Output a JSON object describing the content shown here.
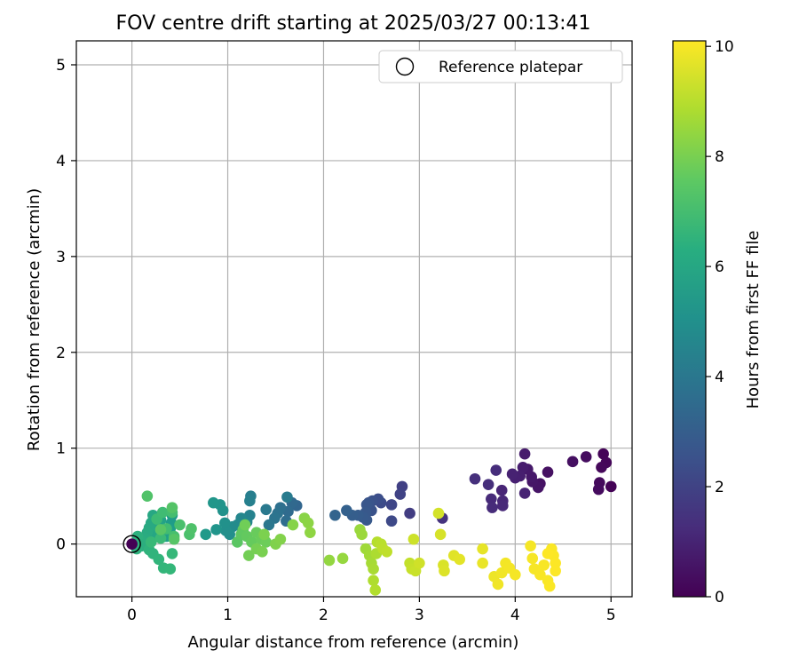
{
  "chart_data": {
    "type": "scatter",
    "title": "FOV centre drift starting at 2025/03/27 00:13:41",
    "xlabel": "Angular distance from reference (arcmin)",
    "ylabel": "Rotation from reference (arcmin)",
    "colorbar_label": "Hours from first FF file",
    "xlim": [
      -0.58,
      5.22
    ],
    "ylim": [
      -0.55,
      5.25
    ],
    "clim": [
      0,
      10.1
    ],
    "colormap": "viridis",
    "grid": true,
    "legend": {
      "position": "upper-right",
      "entries": [
        "Reference platepar"
      ]
    },
    "x_ticks": [
      "0",
      "1",
      "2",
      "3",
      "4",
      "5"
    ],
    "y_ticks": [
      "0",
      "1",
      "2",
      "3",
      "4",
      "5"
    ],
    "colorbar_ticks": [
      "0",
      "2",
      "4",
      "6",
      "8",
      "10"
    ],
    "reference_point": {
      "x": 0,
      "y": 0
    },
    "points": [
      [
        5.0,
        0.6,
        0.05
      ],
      [
        4.92,
        0.94,
        0.1
      ],
      [
        4.95,
        0.85,
        0.15
      ],
      [
        4.9,
        0.8,
        0.2
      ],
      [
        4.88,
        0.64,
        0.25
      ],
      [
        4.87,
        0.57,
        0.3
      ],
      [
        4.74,
        0.91,
        0.35
      ],
      [
        4.6,
        0.86,
        0.4
      ],
      [
        4.34,
        0.75,
        0.45
      ],
      [
        4.26,
        0.63,
        0.5
      ],
      [
        4.24,
        0.59,
        0.55
      ],
      [
        4.18,
        0.65,
        0.6
      ],
      [
        4.17,
        0.7,
        0.65
      ],
      [
        4.13,
        0.78,
        0.7
      ],
      [
        4.1,
        0.94,
        0.75
      ],
      [
        4.08,
        0.8,
        0.8
      ],
      [
        4.05,
        0.71,
        0.85
      ],
      [
        4.0,
        0.69,
        0.9
      ],
      [
        3.97,
        0.73,
        0.95
      ],
      [
        4.1,
        0.53,
        1.0
      ],
      [
        3.86,
        0.56,
        1.05
      ],
      [
        3.87,
        0.45,
        1.1
      ],
      [
        3.87,
        0.4,
        1.15
      ],
      [
        3.75,
        0.47,
        1.2
      ],
      [
        3.76,
        0.38,
        1.25
      ],
      [
        3.8,
        0.77,
        1.3
      ],
      [
        3.72,
        0.62,
        1.35
      ],
      [
        3.58,
        0.68,
        1.4
      ],
      [
        3.24,
        0.27,
        1.5
      ],
      [
        2.9,
        0.32,
        1.8
      ],
      [
        2.82,
        0.6,
        1.9
      ],
      [
        2.8,
        0.52,
        2.0
      ],
      [
        2.71,
        0.41,
        2.1
      ],
      [
        2.71,
        0.24,
        2.2
      ],
      [
        2.6,
        0.43,
        2.3
      ],
      [
        2.57,
        0.47,
        2.4
      ],
      [
        2.51,
        0.45,
        2.5
      ],
      [
        2.5,
        0.35,
        2.55
      ],
      [
        2.47,
        0.43,
        2.6
      ],
      [
        2.45,
        0.41,
        2.7
      ],
      [
        2.44,
        0.33,
        2.75
      ],
      [
        2.45,
        0.25,
        2.8
      ],
      [
        2.41,
        0.28,
        2.85
      ],
      [
        2.36,
        0.3,
        2.9
      ],
      [
        2.3,
        0.3,
        3.0
      ],
      [
        2.24,
        0.35,
        3.1
      ],
      [
        2.12,
        0.3,
        3.2
      ],
      [
        1.72,
        0.4,
        3.3
      ],
      [
        1.67,
        0.43,
        3.4
      ],
      [
        1.63,
        0.34,
        3.5
      ],
      [
        1.61,
        0.24,
        3.6
      ],
      [
        1.55,
        0.38,
        3.7
      ],
      [
        1.52,
        0.32,
        3.8
      ],
      [
        1.49,
        0.27,
        3.9
      ],
      [
        1.43,
        0.2,
        4.0
      ],
      [
        1.4,
        0.36,
        4.1
      ],
      [
        1.62,
        0.49,
        4.2
      ],
      [
        1.24,
        0.5,
        4.3
      ],
      [
        1.23,
        0.45,
        4.4
      ],
      [
        1.23,
        0.3,
        4.5
      ],
      [
        1.2,
        0.23,
        4.6
      ],
      [
        1.14,
        0.27,
        4.7
      ],
      [
        1.1,
        0.2,
        4.8
      ],
      [
        1.05,
        0.18,
        4.9
      ],
      [
        1.02,
        0.1,
        5.0
      ],
      [
        0.98,
        0.14,
        5.05
      ],
      [
        0.97,
        0.22,
        5.1
      ],
      [
        0.95,
        0.35,
        5.15
      ],
      [
        0.92,
        0.41,
        5.2
      ],
      [
        0.88,
        0.15,
        5.25
      ],
      [
        0.85,
        0.43,
        5.3
      ],
      [
        0.77,
        0.1,
        5.4
      ],
      [
        0.42,
        0.3,
        5.5
      ],
      [
        0.41,
        0.22,
        5.55
      ],
      [
        0.4,
        0.16,
        5.6
      ],
      [
        0.38,
        0.12,
        5.65
      ],
      [
        0.36,
        0.08,
        5.7
      ],
      [
        0.34,
        0.14,
        5.75
      ],
      [
        0.3,
        0.25,
        5.8
      ],
      [
        0.28,
        0.2,
        5.85
      ],
      [
        0.26,
        0.14,
        5.9
      ],
      [
        0.24,
        0.1,
        5.95
      ],
      [
        0.22,
        0.3,
        6.0
      ],
      [
        0.2,
        0.22,
        6.05
      ],
      [
        0.18,
        0.17,
        6.1
      ],
      [
        0.16,
        0.12,
        6.15
      ],
      [
        0.14,
        0.06,
        6.2
      ],
      [
        0.12,
        0.02,
        6.25
      ],
      [
        0.1,
        -0.02,
        6.3
      ],
      [
        0.08,
        0.04,
        6.35
      ],
      [
        0.06,
        0.08,
        6.4
      ],
      [
        0.05,
        -0.05,
        6.45
      ],
      [
        0.18,
        -0.06,
        6.5
      ],
      [
        0.22,
        -0.1,
        6.55
      ],
      [
        0.28,
        -0.16,
        6.6
      ],
      [
        0.33,
        -0.25,
        6.65
      ],
      [
        0.4,
        -0.26,
        6.7
      ],
      [
        0.42,
        -0.1,
        6.75
      ],
      [
        0.2,
        0.02,
        6.8
      ],
      [
        0.3,
        0.06,
        6.85
      ],
      [
        0.26,
        0.26,
        6.9
      ],
      [
        0.32,
        0.33,
        6.95
      ],
      [
        0.36,
        0.16,
        7.0
      ],
      [
        0.42,
        0.33,
        7.05
      ],
      [
        0.44,
        0.08,
        7.1
      ],
      [
        0.5,
        0.2,
        7.15
      ],
      [
        0.6,
        0.1,
        7.2
      ],
      [
        0.62,
        0.16,
        7.25
      ],
      [
        0.16,
        0.5,
        7.3
      ],
      [
        0.42,
        0.38,
        7.35
      ],
      [
        0.44,
        0.05,
        7.4
      ],
      [
        0.3,
        0.15,
        7.45
      ],
      [
        1.1,
        0.02,
        7.5
      ],
      [
        1.14,
        0.1,
        7.55
      ],
      [
        1.16,
        0.15,
        7.6
      ],
      [
        1.2,
        0.08,
        7.65
      ],
      [
        1.25,
        0.02,
        7.7
      ],
      [
        1.3,
        0.12,
        7.75
      ],
      [
        1.35,
        0.05,
        7.8
      ],
      [
        1.4,
        0.02,
        7.85
      ],
      [
        1.18,
        0.2,
        7.9
      ],
      [
        1.22,
        -0.12,
        7.95
      ],
      [
        1.3,
        -0.05,
        8.0
      ],
      [
        1.36,
        -0.08,
        8.05
      ],
      [
        1.38,
        0.1,
        8.1
      ],
      [
        1.5,
        0.0,
        8.15
      ],
      [
        1.55,
        0.05,
        8.2
      ],
      [
        1.68,
        0.2,
        8.25
      ],
      [
        1.8,
        0.27,
        8.3
      ],
      [
        1.84,
        0.22,
        8.35
      ],
      [
        1.86,
        0.12,
        8.4
      ],
      [
        2.06,
        -0.17,
        8.45
      ],
      [
        2.2,
        -0.15,
        8.5
      ],
      [
        2.38,
        0.15,
        8.55
      ],
      [
        2.4,
        0.1,
        8.6
      ],
      [
        2.44,
        -0.05,
        8.65
      ],
      [
        2.48,
        -0.12,
        8.7
      ],
      [
        2.5,
        -0.2,
        8.75
      ],
      [
        2.52,
        -0.26,
        8.8
      ],
      [
        2.55,
        -0.1,
        8.85
      ],
      [
        2.52,
        -0.38,
        8.9
      ],
      [
        2.54,
        -0.48,
        8.95
      ],
      [
        2.56,
        0.02,
        9.0
      ],
      [
        2.6,
        0.0,
        9.05
      ],
      [
        2.62,
        -0.05,
        9.1
      ],
      [
        2.66,
        -0.08,
        9.15
      ],
      [
        2.9,
        -0.2,
        9.2
      ],
      [
        2.92,
        -0.26,
        9.25
      ],
      [
        2.96,
        -0.28,
        9.3
      ],
      [
        2.94,
        0.05,
        9.35
      ],
      [
        3.0,
        -0.2,
        9.4
      ],
      [
        3.2,
        0.32,
        9.45
      ],
      [
        3.22,
        0.1,
        9.5
      ],
      [
        3.25,
        -0.22,
        9.55
      ],
      [
        3.26,
        -0.28,
        9.6
      ],
      [
        3.36,
        -0.12,
        9.65
      ],
      [
        3.42,
        -0.16,
        9.7
      ],
      [
        3.66,
        -0.05,
        9.75
      ],
      [
        3.66,
        -0.2,
        9.8
      ],
      [
        3.78,
        -0.34,
        9.85
      ],
      [
        3.82,
        -0.42,
        9.9
      ],
      [
        3.86,
        -0.3,
        9.92
      ],
      [
        3.9,
        -0.2,
        9.94
      ],
      [
        3.94,
        -0.25,
        9.96
      ],
      [
        4.0,
        -0.32,
        9.97
      ],
      [
        4.16,
        -0.02,
        9.98
      ],
      [
        4.18,
        -0.15,
        9.99
      ],
      [
        4.2,
        -0.26,
        10.0
      ],
      [
        4.26,
        -0.32,
        10.02
      ],
      [
        4.3,
        -0.22,
        10.03
      ],
      [
        4.34,
        -0.38,
        10.04
      ],
      [
        4.36,
        -0.44,
        10.05
      ],
      [
        4.38,
        -0.05,
        10.06
      ],
      [
        4.4,
        -0.12,
        10.07
      ],
      [
        4.42,
        -0.2,
        10.08
      ],
      [
        4.42,
        -0.28,
        10.09
      ],
      [
        4.34,
        -0.1,
        10.1
      ]
    ]
  }
}
